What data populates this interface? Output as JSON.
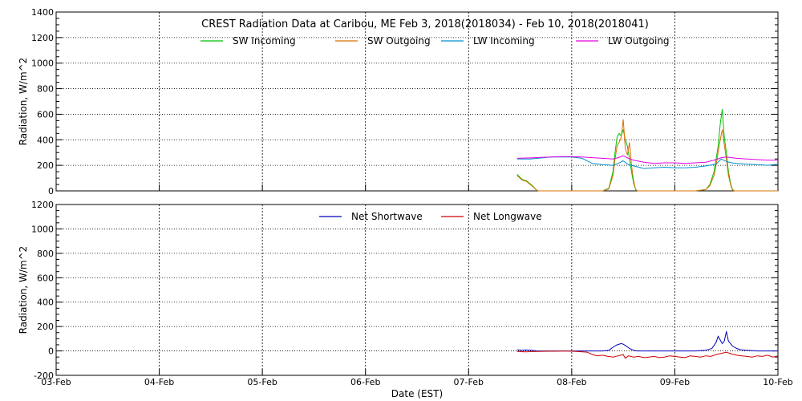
{
  "chart_data": [
    {
      "type": "line",
      "title": "CREST Radiation Data at Caribou, ME   Feb  3, 2018(2018034) - Feb 10, 2018(2018041)",
      "ylabel": "Radiation, W/m^2",
      "xlabel": "",
      "ylim": [
        0,
        1400
      ],
      "xlim": [
        0,
        7
      ],
      "yticks": [
        "0",
        "200",
        "400",
        "600",
        "800",
        "1000",
        "1200",
        "1400"
      ],
      "x_tick_labels": [
        "03-Feb",
        "04-Feb",
        "05-Feb",
        "06-Feb",
        "07-Feb",
        "08-Feb",
        "09-Feb",
        "10-Feb"
      ],
      "grid": true,
      "legend_position": "top",
      "series": [
        {
          "name": "SW Incoming",
          "color": "#00c000",
          "x": [
            4.47,
            4.52,
            4.56,
            4.62,
            4.66,
            4.68,
            4.72,
            4.74,
            4.76,
            4.8,
            4.84,
            4.88,
            4.92,
            4.96,
            5.0,
            5.1,
            5.2,
            5.3,
            5.36,
            5.4,
            5.42,
            5.44,
            5.46,
            5.48,
            5.5,
            5.52,
            5.54,
            5.56,
            5.58,
            5.6,
            5.62,
            5.64,
            5.66,
            5.7,
            5.8,
            5.9,
            6.0,
            6.1,
            6.2,
            6.3,
            6.34,
            6.38,
            6.4,
            6.42,
            6.44,
            6.46,
            6.48,
            6.5,
            6.52,
            6.54,
            6.56,
            6.58,
            6.62,
            6.66,
            6.72,
            6.8,
            6.9,
            7.0
          ],
          "y": [
            130,
            90,
            80,
            40,
            5,
            0,
            0,
            0,
            0,
            0,
            0,
            0,
            0,
            0,
            0,
            0,
            0,
            0,
            20,
            150,
            300,
            420,
            450,
            430,
            480,
            400,
            350,
            250,
            150,
            60,
            10,
            0,
            0,
            0,
            0,
            0,
            0,
            0,
            0,
            10,
            50,
            150,
            250,
            350,
            520,
            640,
            420,
            300,
            150,
            60,
            10,
            0,
            0,
            0,
            0,
            0,
            0,
            0
          ]
        },
        {
          "name": "SW Outgoing",
          "color": "#d87000",
          "x": [
            4.47,
            4.52,
            4.56,
            4.62,
            4.66,
            4.68,
            4.72,
            4.8,
            4.9,
            5.0,
            5.1,
            5.2,
            5.3,
            5.36,
            5.4,
            5.42,
            5.44,
            5.46,
            5.48,
            5.5,
            5.52,
            5.54,
            5.56,
            5.58,
            5.6,
            5.62,
            5.64,
            5.66,
            5.7,
            5.8,
            5.9,
            6.0,
            6.1,
            6.2,
            6.3,
            6.34,
            6.38,
            6.4,
            6.42,
            6.44,
            6.46,
            6.48,
            6.5,
            6.52,
            6.54,
            6.56,
            6.58,
            6.62,
            6.66,
            6.72,
            6.8,
            6.9,
            7.0
          ],
          "y": [
            120,
            85,
            75,
            35,
            5,
            0,
            0,
            0,
            0,
            0,
            0,
            0,
            0,
            15,
            120,
            250,
            350,
            380,
            420,
            560,
            330,
            280,
            380,
            200,
            80,
            10,
            0,
            0,
            0,
            0,
            0,
            0,
            0,
            0,
            10,
            40,
            120,
            200,
            300,
            400,
            480,
            360,
            250,
            120,
            50,
            5,
            0,
            0,
            0,
            0,
            0,
            0,
            0
          ]
        },
        {
          "name": "LW Incoming",
          "color": "#0090d0",
          "x": [
            4.47,
            4.6,
            4.8,
            5.0,
            5.1,
            5.2,
            5.3,
            5.4,
            5.45,
            5.5,
            5.55,
            5.6,
            5.7,
            5.8,
            5.9,
            6.0,
            6.1,
            6.2,
            6.3,
            6.4,
            6.45,
            6.5,
            6.55,
            6.6,
            6.7,
            6.8,
            6.9,
            7.0
          ],
          "y": [
            250,
            250,
            265,
            265,
            255,
            215,
            205,
            200,
            215,
            235,
            205,
            195,
            175,
            180,
            185,
            180,
            180,
            185,
            195,
            210,
            250,
            230,
            220,
            215,
            210,
            205,
            200,
            210
          ]
        },
        {
          "name": "LW Outgoing",
          "color": "#e000e0",
          "x": [
            4.47,
            4.6,
            4.7,
            4.8,
            4.9,
            5.0,
            5.1,
            5.2,
            5.3,
            5.4,
            5.45,
            5.5,
            5.55,
            5.6,
            5.7,
            5.8,
            5.9,
            6.0,
            6.1,
            6.2,
            6.3,
            6.4,
            6.45,
            6.5,
            6.55,
            6.6,
            6.7,
            6.8,
            6.9,
            7.0
          ],
          "y": [
            255,
            258,
            262,
            265,
            268,
            268,
            265,
            260,
            255,
            250,
            260,
            275,
            255,
            240,
            225,
            215,
            220,
            220,
            215,
            220,
            225,
            245,
            260,
            265,
            260,
            255,
            250,
            245,
            240,
            240
          ]
        }
      ]
    },
    {
      "type": "line",
      "title": "",
      "ylabel": "Radiation, W/m^2",
      "xlabel": "Date (EST)",
      "ylim": [
        -200,
        1200
      ],
      "xlim": [
        0,
        7
      ],
      "yticks": [
        "-200",
        "0",
        "200",
        "400",
        "600",
        "800",
        "1000",
        "1200"
      ],
      "x_tick_labels": [
        "03-Feb",
        "04-Feb",
        "05-Feb",
        "06-Feb",
        "07-Feb",
        "08-Feb",
        "09-Feb",
        "10-Feb"
      ],
      "grid": true,
      "legend_position": "top",
      "series": [
        {
          "name": "Net Shortwave",
          "color": "#0000c0",
          "x": [
            4.47,
            4.52,
            4.56,
            4.62,
            4.66,
            4.7,
            4.8,
            4.9,
            5.0,
            5.1,
            5.2,
            5.3,
            5.36,
            5.4,
            5.44,
            5.48,
            5.5,
            5.52,
            5.56,
            5.6,
            5.64,
            5.7,
            5.8,
            5.9,
            6.0,
            6.1,
            6.2,
            6.3,
            6.36,
            6.4,
            6.42,
            6.44,
            6.46,
            6.48,
            6.5,
            6.52,
            6.56,
            6.6,
            6.64,
            6.7,
            6.8,
            6.9,
            7.0
          ],
          "y": [
            10,
            5,
            8,
            5,
            0,
            0,
            0,
            0,
            0,
            0,
            0,
            0,
            5,
            30,
            50,
            60,
            55,
            45,
            20,
            5,
            0,
            0,
            0,
            0,
            0,
            0,
            0,
            5,
            20,
            70,
            120,
            90,
            60,
            80,
            160,
            80,
            40,
            20,
            10,
            5,
            0,
            0,
            0
          ]
        },
        {
          "name": "Net Longwave",
          "color": "#d00000",
          "x": [
            4.47,
            4.55,
            4.65,
            4.75,
            4.85,
            4.95,
            5.05,
            5.15,
            5.2,
            5.25,
            5.3,
            5.35,
            5.4,
            5.45,
            5.5,
            5.52,
            5.55,
            5.6,
            5.65,
            5.7,
            5.75,
            5.8,
            5.85,
            5.9,
            5.95,
            6.0,
            6.05,
            6.1,
            6.15,
            6.2,
            6.25,
            6.3,
            6.35,
            6.4,
            6.45,
            6.5,
            6.55,
            6.6,
            6.65,
            6.7,
            6.75,
            6.8,
            6.85,
            6.9,
            6.95,
            7.0
          ],
          "y": [
            -5,
            -8,
            -5,
            -3,
            -2,
            0,
            -5,
            -10,
            -30,
            -40,
            -35,
            -45,
            -50,
            -40,
            -30,
            -60,
            -40,
            -50,
            -45,
            -55,
            -50,
            -45,
            -55,
            -50,
            -40,
            -45,
            -50,
            -55,
            -40,
            -45,
            -50,
            -40,
            -45,
            -30,
            -20,
            -10,
            -25,
            -35,
            -40,
            -45,
            -50,
            -40,
            -45,
            -35,
            -50,
            -40
          ]
        }
      ]
    }
  ]
}
